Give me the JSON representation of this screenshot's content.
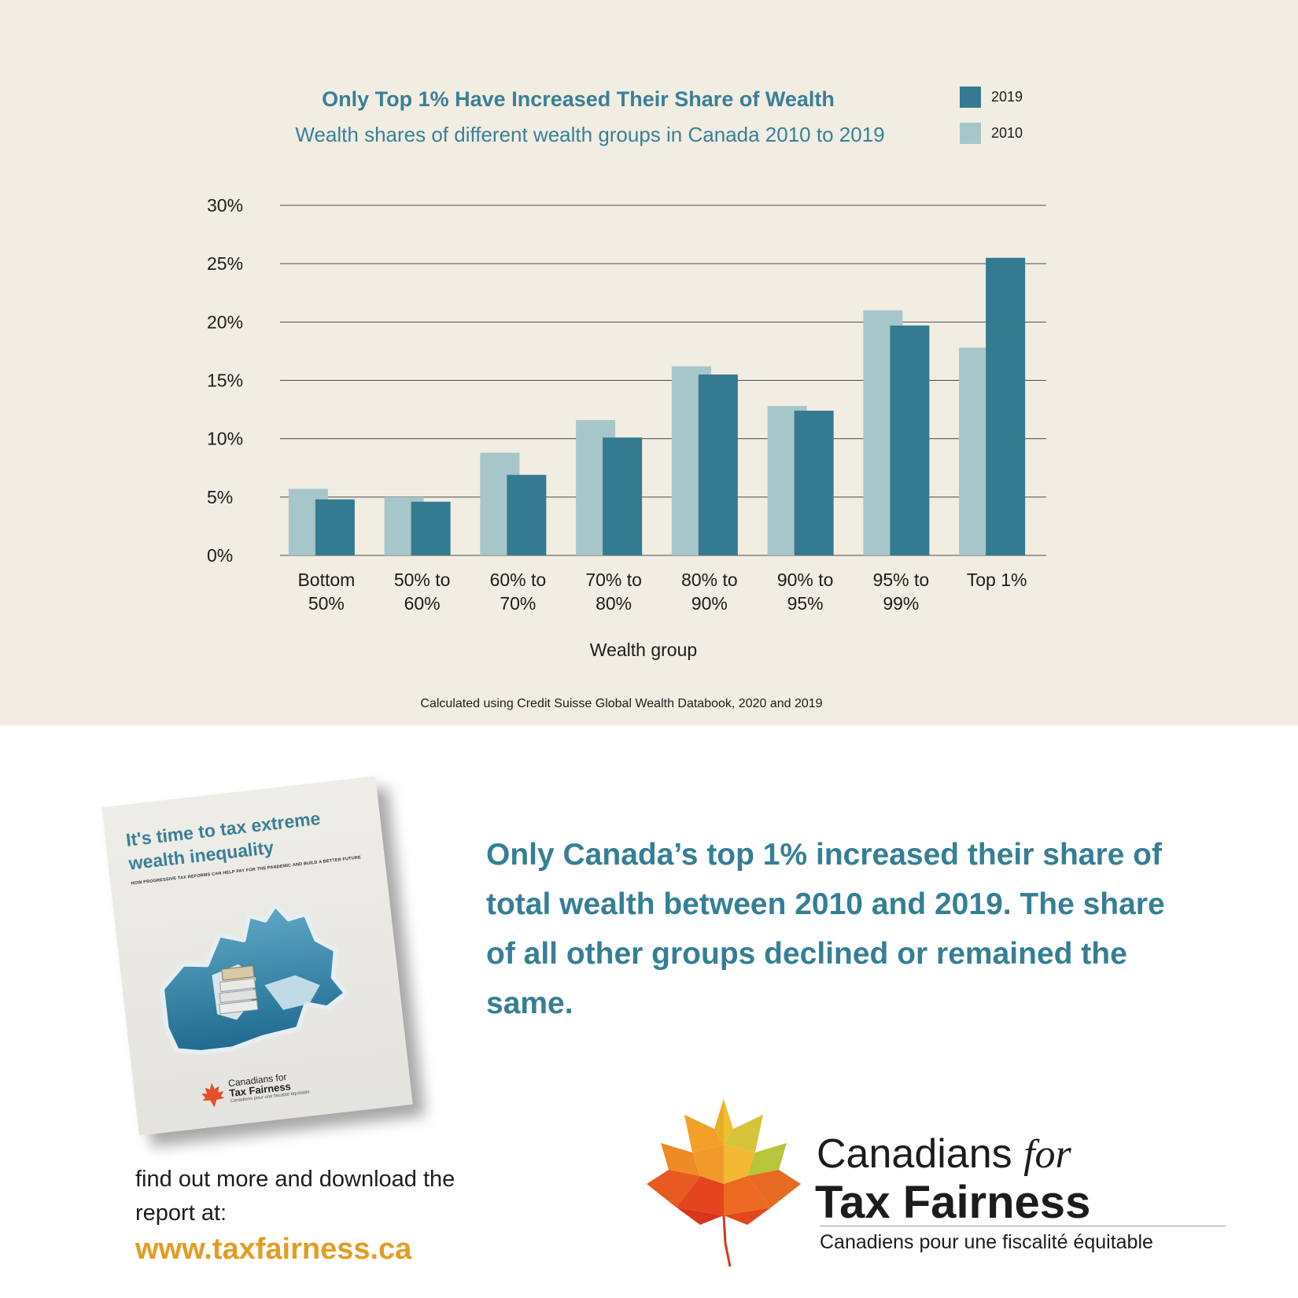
{
  "chart_data": {
    "type": "bar",
    "title": "Only Top 1% Have Increased Their Share of Wealth",
    "subtitle": "Wealth shares of different wealth groups in Canada 2010 to 2019",
    "xlabel": "Wealth group",
    "ylabel": "",
    "ylim": [
      0,
      30
    ],
    "yticks": [
      "0%",
      "5%",
      "10%",
      "15%",
      "20%",
      "25%",
      "30%"
    ],
    "ytick_values": [
      0,
      5,
      10,
      15,
      20,
      25,
      30
    ],
    "grid": true,
    "legend_position": "top-right",
    "categories": [
      [
        "Bottom",
        "50%"
      ],
      [
        "50% to",
        "60%"
      ],
      [
        "60% to",
        "70%"
      ],
      [
        "70% to",
        "80%"
      ],
      [
        "80% to",
        "90%"
      ],
      [
        "90% to",
        "95%"
      ],
      [
        "95% to",
        "99%"
      ],
      [
        "Top 1%"
      ]
    ],
    "series": [
      {
        "name": "2010",
        "color": "#a7c6ca",
        "values": [
          5.7,
          5.0,
          8.8,
          11.6,
          16.2,
          12.8,
          21.0,
          17.8
        ]
      },
      {
        "name": "2019",
        "color": "#347a91",
        "values": [
          4.8,
          4.6,
          6.9,
          10.1,
          15.5,
          12.4,
          19.7,
          25.5
        ]
      }
    ],
    "legend": [
      {
        "name": "2019",
        "color": "#347a91"
      },
      {
        "name": "2010",
        "color": "#a7c6ca"
      }
    ],
    "source": "Calculated using Credit Suisse Global Wealth Databook, 2020 and 2019"
  },
  "report": {
    "title": "It's time to tax extreme wealth inequality",
    "tagline": "HOW PROGRESSIVE TAX REFORMS CAN HELP PAY FOR THE PANDEMIC AND BUILD A BETTER FUTURE",
    "logo_line1": "Canadians for",
    "logo_line2": "Tax Fairness",
    "logo_line3": "Canadiens pour une fiscalité équitable"
  },
  "headline": "Only Canada’s top 1% increased their share of total wealth between 2010 and 2019. The share of all other groups declined or remained the same.",
  "cta": "find out more and download the report at:",
  "website": "www.taxfairness.ca",
  "logo": {
    "line1_main": "Canadians ",
    "line1_for": "for",
    "line2": "Tax Fairness",
    "line3": "Canadiens pour une fiscalité équitable"
  },
  "colors": {
    "panel": "#f1ede3",
    "accent": "#357f95",
    "orange": "#e39c22"
  }
}
